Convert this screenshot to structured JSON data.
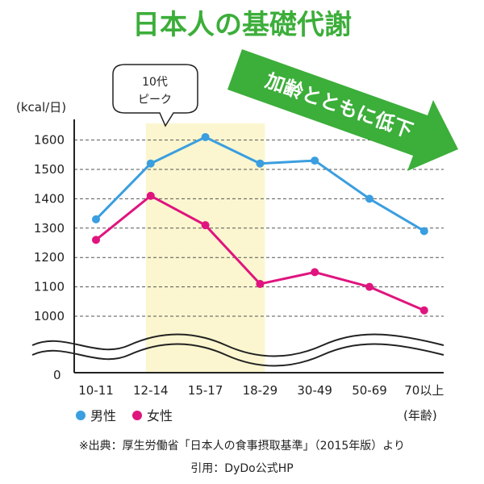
{
  "chart_data": {
    "type": "line",
    "title": "日本人の基礎代謝",
    "ylabel": "(kcal/日)",
    "xlabel": "(年齢)",
    "categories": [
      "10-11",
      "12-14",
      "15-17",
      "18-29",
      "30-49",
      "50-69",
      "70以上"
    ],
    "y_ticks": [
      1000,
      1100,
      1200,
      1300,
      1400,
      1500,
      1600
    ],
    "y_zero_label": "0",
    "ylim": [
      1000,
      1650
    ],
    "axis_break": true,
    "grid": "dashed-horizontal",
    "series": [
      {
        "name": "男性",
        "color": "#3a9ee0",
        "values": [
          1330,
          1520,
          1610,
          1520,
          1530,
          1400,
          1290
        ]
      },
      {
        "name": "女性",
        "color": "#e0147e",
        "values": [
          1260,
          1410,
          1310,
          1110,
          1150,
          1100,
          1020
        ]
      }
    ],
    "highlight": {
      "from_category": "12-14",
      "to_category": "18-29",
      "color": "#fbf6cf"
    },
    "callout": {
      "line1": "10代",
      "line2": "ピーク"
    },
    "trend_arrow": {
      "label": "加齢とともに低下",
      "color": "#3cae3a"
    },
    "legend_placement": "bottom-left"
  },
  "footer": {
    "source": "※出典：厚生労働省「日本人の食事摂取基準」（2015年版）より",
    "credit": "引用：DyDo公式HP"
  }
}
